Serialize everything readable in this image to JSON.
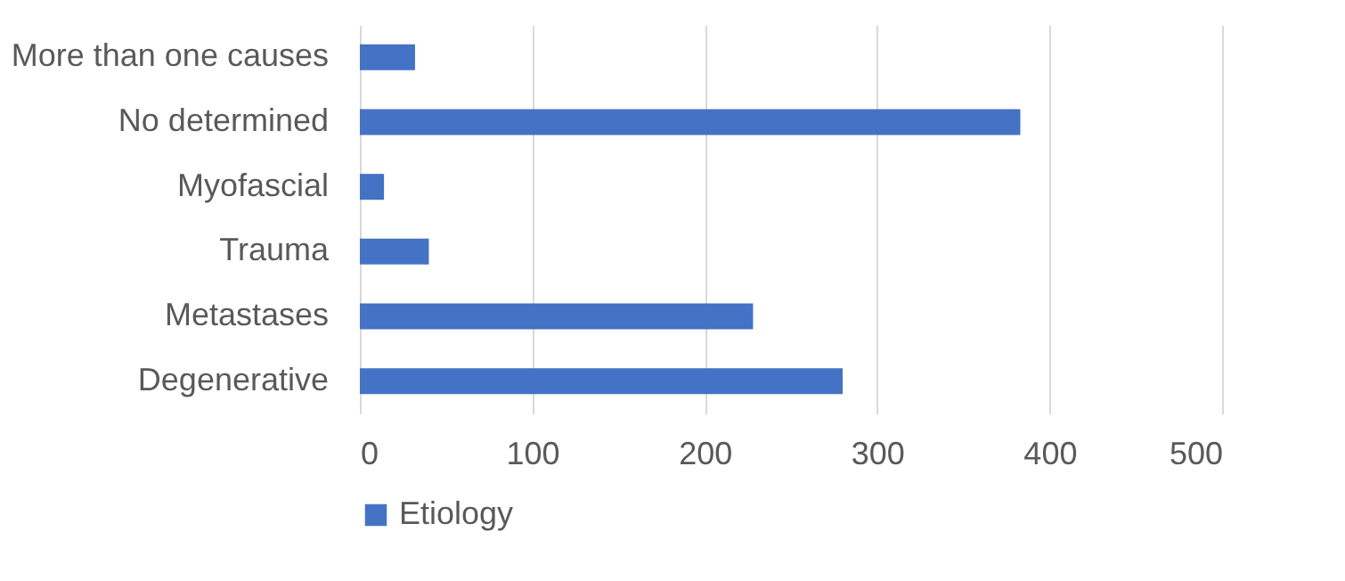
{
  "chart_data": {
    "type": "bar",
    "orientation": "horizontal",
    "categories": [
      "More than one causes",
      "No determined",
      "Myofascial",
      "Trauma",
      "Metastases",
      "Degenerative"
    ],
    "series": [
      {
        "name": "Etiology",
        "color": "#4472c4",
        "values": [
          32,
          383,
          14,
          40,
          228,
          280
        ]
      }
    ],
    "xlim": [
      0,
      500
    ],
    "xticks": [
      0,
      100,
      200,
      300,
      400,
      500
    ],
    "grid": "x",
    "legend": "bottom"
  }
}
